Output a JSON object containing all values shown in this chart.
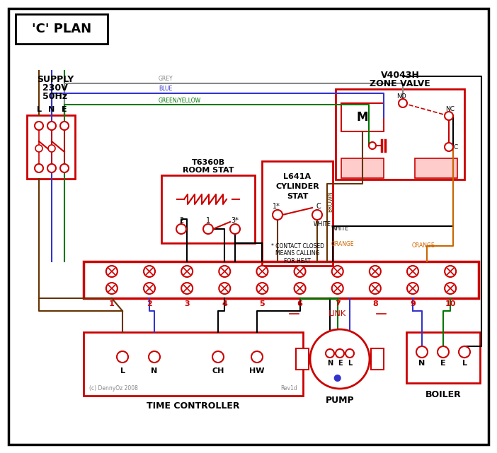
{
  "title": "'C' PLAN",
  "bg_color": "#ffffff",
  "red": "#cc0000",
  "blue": "#3333cc",
  "green": "#007700",
  "brown": "#663300",
  "grey": "#888888",
  "orange": "#cc6600",
  "black": "#000000",
  "pink_fill": "#ffcccc",
  "zone_valve_label1": "V4043H",
  "zone_valve_label2": "ZONE VALVE",
  "supply_label": "SUPPLY\n230V\n50Hz",
  "room_stat_label1": "T6360B",
  "room_stat_label2": "ROOM STAT",
  "cyl_stat_label1": "L641A",
  "cyl_stat_label2": "CYLINDER",
  "cyl_stat_label3": "STAT",
  "time_ctrl_label": "TIME CONTROLLER",
  "pump_label": "PUMP",
  "boiler_label": "BOILER",
  "link_label": "LINK",
  "contact_note": "* CONTACT CLOSED\nMEANS CALLING\nFOR HEAT",
  "copyright": "(c) DennyOz 2008",
  "revision": "Rev1d"
}
